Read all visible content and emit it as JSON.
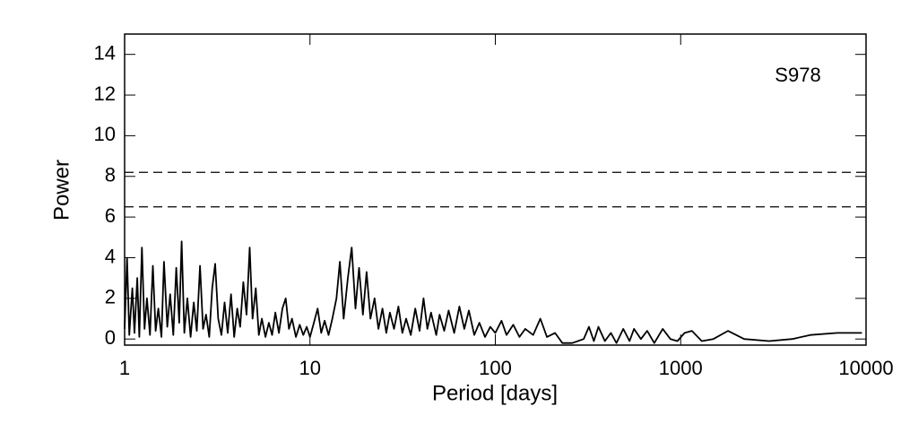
{
  "chart_data": {
    "type": "line",
    "xlabel": "Period [days]",
    "ylabel": "Power",
    "annotation": "S978",
    "xscale": "log",
    "xlim": [
      1,
      10000
    ],
    "xticks": [
      1,
      10,
      100,
      1000,
      10000
    ],
    "ylim": [
      -0.3,
      15
    ],
    "yticks": [
      0,
      2,
      4,
      6,
      8,
      10,
      12,
      14
    ],
    "reference_lines": [
      8.2,
      6.5
    ],
    "color": "#000000",
    "x": [
      1.0,
      1.03,
      1.06,
      1.1,
      1.13,
      1.17,
      1.2,
      1.24,
      1.28,
      1.32,
      1.37,
      1.42,
      1.47,
      1.52,
      1.58,
      1.63,
      1.7,
      1.76,
      1.83,
      1.9,
      1.97,
      2.03,
      2.1,
      2.18,
      2.27,
      2.36,
      2.45,
      2.55,
      2.65,
      2.75,
      2.86,
      2.97,
      3.08,
      3.2,
      3.33,
      3.46,
      3.6,
      3.75,
      3.9,
      4.05,
      4.2,
      4.37,
      4.55,
      4.73,
      4.9,
      5.1,
      5.3,
      5.5,
      5.75,
      6.0,
      6.25,
      6.5,
      6.8,
      7.1,
      7.4,
      7.7,
      8.0,
      8.4,
      8.8,
      9.2,
      9.6,
      10.0,
      10.5,
      11,
      11.5,
      12,
      12.6,
      13.2,
      13.9,
      14.5,
      15.2,
      16,
      16.8,
      17.6,
      18.4,
      19.3,
      20.2,
      21.2,
      22.3,
      23.4,
      24.6,
      25.8,
      27,
      28.4,
      30,
      31.5,
      33,
      35,
      37,
      39,
      41,
      43,
      45,
      48,
      50,
      53,
      56,
      60,
      64,
      68,
      72,
      77,
      82,
      88,
      94,
      100,
      108,
      115,
      125,
      135,
      145,
      160,
      175,
      190,
      210,
      230,
      260,
      300,
      320,
      340,
      360,
      390,
      420,
      450,
      490,
      530,
      560,
      610,
      660,
      720,
      800,
      880,
      960,
      1050,
      1150,
      1300,
      1500,
      1800,
      2200,
      3000,
      4000,
      5000,
      7000,
      9500
    ],
    "values": [
      0.5,
      4.0,
      0.2,
      2.5,
      0.3,
      3.0,
      0.1,
      4.5,
      0.5,
      2.0,
      0.2,
      3.6,
      0.4,
      1.5,
      0.1,
      3.8,
      0.6,
      2.2,
      0.2,
      3.5,
      0.8,
      4.8,
      0.3,
      2.0,
      0.1,
      1.8,
      0.4,
      3.6,
      0.5,
      1.2,
      0.1,
      2.5,
      3.7,
      1.0,
      0.2,
      1.8,
      0.3,
      2.2,
      0.1,
      1.5,
      0.6,
      2.8,
      1.2,
      4.5,
      1.0,
      2.5,
      0.2,
      1.0,
      0.1,
      0.8,
      0.2,
      1.3,
      0.3,
      1.5,
      2.0,
      0.5,
      1.0,
      0.1,
      0.7,
      0.2,
      0.6,
      0.1,
      0.8,
      1.5,
      0.3,
      0.9,
      0.2,
      1.0,
      2.0,
      3.8,
      1.0,
      3.0,
      4.5,
      1.5,
      3.5,
      1.2,
      3.3,
      1.0,
      2.0,
      0.5,
      1.5,
      0.3,
      1.3,
      0.5,
      1.6,
      0.3,
      1.0,
      0.2,
      1.5,
      0.4,
      2.0,
      0.5,
      1.3,
      0.2,
      1.2,
      0.4,
      1.4,
      0.3,
      1.6,
      0.5,
      1.4,
      0.2,
      0.8,
      0.1,
      0.6,
      0.3,
      0.9,
      0.2,
      0.7,
      0.1,
      0.5,
      0.2,
      1.0,
      0.1,
      0.3,
      -0.2,
      -0.2,
      0.0,
      0.6,
      -0.1,
      0.6,
      -0.1,
      0.3,
      -0.2,
      0.5,
      -0.1,
      0.5,
      0.0,
      0.4,
      -0.2,
      0.5,
      0.0,
      -0.1,
      0.3,
      0.4,
      -0.1,
      0.0,
      0.4,
      0.0,
      -0.1,
      0.0,
      0.2,
      0.3,
      0.3
    ]
  }
}
